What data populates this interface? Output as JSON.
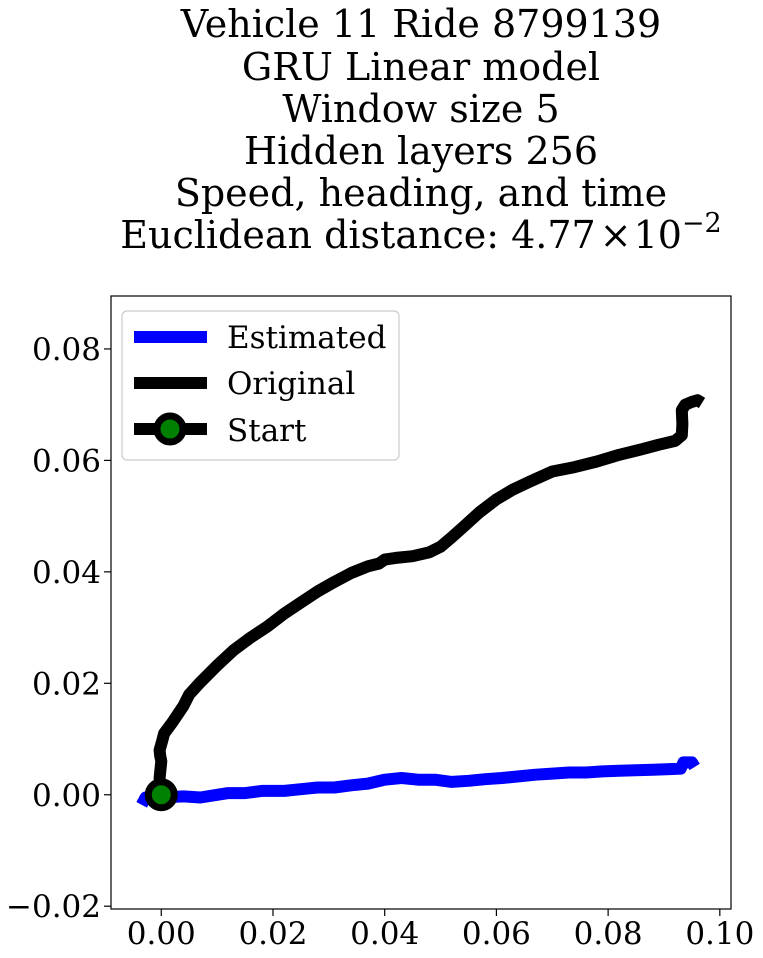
{
  "chart_data": {
    "type": "line",
    "title_lines": [
      "Vehicle 11 Ride 8799139",
      "GRU Linear model",
      "Window size 5",
      "Hidden layers 256",
      "Speed, heading, and time"
    ],
    "title_last_prefix": "Euclidean distance: 4.77",
    "title_last_times": "×",
    "title_last_base": "10",
    "title_last_exp": "−2",
    "xlim": [
      -0.009,
      0.102
    ],
    "ylim": [
      -0.0205,
      0.0895
    ],
    "x_ticks": [
      0.0,
      0.02,
      0.04,
      0.06,
      0.08,
      0.1
    ],
    "x_tick_labels": [
      "0.00",
      "0.02",
      "0.04",
      "0.06",
      "0.08",
      "0.10"
    ],
    "y_ticks": [
      -0.02,
      0.0,
      0.02,
      0.04,
      0.06,
      0.08
    ],
    "y_tick_labels": [
      "−0.02",
      "0.00",
      "0.02",
      "0.04",
      "0.06",
      "0.08"
    ],
    "grid": false,
    "legend_position": "upper-left",
    "legend": [
      {
        "label": "Estimated",
        "color": "#0000ff",
        "marker": false
      },
      {
        "label": "Original",
        "color": "#000000",
        "marker": false
      },
      {
        "label": "Start",
        "color": "#000000",
        "marker": true
      }
    ],
    "series": [
      {
        "name": "Estimated",
        "color": "#0000ff",
        "points": [
          [
            -0.0035,
            -0.0018
          ],
          [
            -0.0028,
            -0.0005
          ],
          [
            -0.0015,
            -0.0008
          ],
          [
            0.0,
            -0.0005
          ],
          [
            0.004,
            -0.0003
          ],
          [
            0.007,
            -0.0005
          ],
          [
            0.01,
            0.0
          ],
          [
            0.012,
            0.0003
          ],
          [
            0.015,
            0.0003
          ],
          [
            0.018,
            0.0007
          ],
          [
            0.022,
            0.0007
          ],
          [
            0.025,
            0.001
          ],
          [
            0.028,
            0.0013
          ],
          [
            0.031,
            0.0013
          ],
          [
            0.034,
            0.0017
          ],
          [
            0.037,
            0.002
          ],
          [
            0.04,
            0.0027
          ],
          [
            0.043,
            0.003
          ],
          [
            0.046,
            0.0027
          ],
          [
            0.049,
            0.0027
          ],
          [
            0.052,
            0.0023
          ],
          [
            0.055,
            0.0025
          ],
          [
            0.058,
            0.0028
          ],
          [
            0.061,
            0.003
          ],
          [
            0.064,
            0.0033
          ],
          [
            0.067,
            0.0036
          ],
          [
            0.07,
            0.0038
          ],
          [
            0.073,
            0.004
          ],
          [
            0.076,
            0.004
          ],
          [
            0.079,
            0.0042
          ],
          [
            0.082,
            0.0043
          ],
          [
            0.085,
            0.0044
          ],
          [
            0.088,
            0.0045
          ],
          [
            0.091,
            0.0046
          ],
          [
            0.093,
            0.0047
          ],
          [
            0.0935,
            0.0058
          ],
          [
            0.095,
            0.0058
          ],
          [
            0.0955,
            0.005
          ]
        ]
      },
      {
        "name": "Original",
        "color": "#000000",
        "points": [
          [
            0.0,
            0.0
          ],
          [
            -0.0003,
            0.003
          ],
          [
            0.0,
            0.006
          ],
          [
            -0.0002,
            0.007
          ],
          [
            -0.0003,
            0.008
          ],
          [
            0.0002,
            0.0098
          ],
          [
            0.0005,
            0.011
          ],
          [
            0.002,
            0.013
          ],
          [
            0.004,
            0.016
          ],
          [
            0.005,
            0.018
          ],
          [
            0.007,
            0.0202
          ],
          [
            0.01,
            0.0232
          ],
          [
            0.013,
            0.026
          ],
          [
            0.016,
            0.0282
          ],
          [
            0.019,
            0.0302
          ],
          [
            0.022,
            0.0325
          ],
          [
            0.025,
            0.0345
          ],
          [
            0.028,
            0.0365
          ],
          [
            0.031,
            0.0382
          ],
          [
            0.034,
            0.0398
          ],
          [
            0.037,
            0.041
          ],
          [
            0.039,
            0.0415
          ],
          [
            0.04,
            0.0422
          ],
          [
            0.042,
            0.0425
          ],
          [
            0.045,
            0.0428
          ],
          [
            0.048,
            0.0435
          ],
          [
            0.05,
            0.0445
          ],
          [
            0.052,
            0.0462
          ],
          [
            0.054,
            0.048
          ],
          [
            0.057,
            0.0507
          ],
          [
            0.06,
            0.053
          ],
          [
            0.063,
            0.0548
          ],
          [
            0.066,
            0.0562
          ],
          [
            0.07,
            0.058
          ],
          [
            0.074,
            0.0588
          ],
          [
            0.078,
            0.0598
          ],
          [
            0.082,
            0.061
          ],
          [
            0.086,
            0.062
          ],
          [
            0.089,
            0.0628
          ],
          [
            0.092,
            0.0635
          ],
          [
            0.0932,
            0.0645
          ],
          [
            0.0933,
            0.0665
          ],
          [
            0.0932,
            0.069
          ],
          [
            0.0938,
            0.07
          ],
          [
            0.095,
            0.0705
          ],
          [
            0.096,
            0.0708
          ],
          [
            0.0968,
            0.0703
          ]
        ]
      }
    ],
    "start_point": [
      0.0,
      0.0
    ],
    "start_marker_fill": "#008000",
    "start_marker_edge": "#000000"
  }
}
